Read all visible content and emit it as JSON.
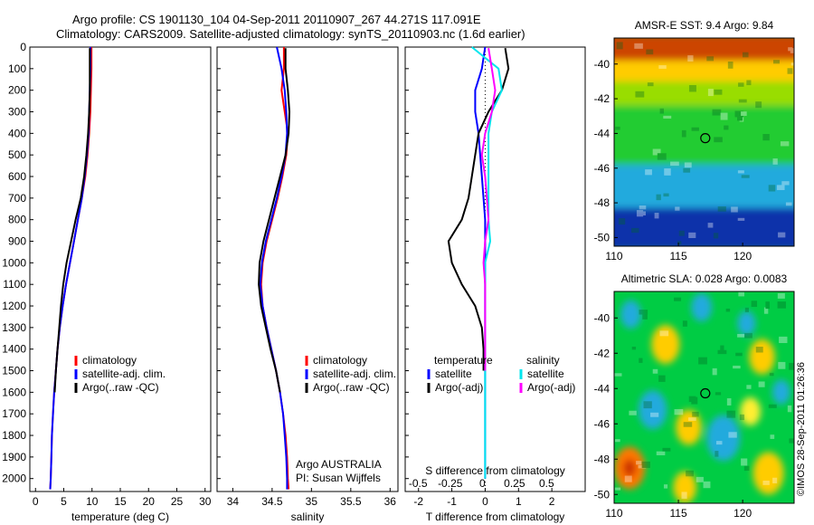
{
  "header": {
    "line1": "Argo profile: CS 1901130_104 04-Sep-2011 20110907_267 44.271S 117.091E",
    "line2": "Climatology: CARS2009. Satellite-adjusted climatology: synTS_20110903.nc (1.6d earlier)"
  },
  "credit": "©IMOS 28-Sep-2011 01:26:36",
  "colors": {
    "climatology": "#ff0000",
    "satellite": "#0000ff",
    "argo": "#000000",
    "satellite_salinity": "#00e5ee",
    "argo_salinity": "#ff00ff",
    "map_background": "#00cc44"
  },
  "chart_data": [
    {
      "type": "line",
      "panel": "temperature",
      "xlabel": "temperature (deg C)",
      "xlim": [
        -1,
        31
      ],
      "ylim": [
        2060,
        0
      ],
      "xticks": [
        0,
        5,
        10,
        15,
        20,
        25,
        30
      ],
      "yticks": [
        0,
        100,
        200,
        300,
        400,
        500,
        600,
        700,
        800,
        900,
        1000,
        1100,
        1200,
        1300,
        1400,
        1500,
        1600,
        1700,
        1800,
        1900,
        2000
      ],
      "legend": [
        "climatology",
        "satellite-adj. clim.",
        "Argo(..raw -QC)"
      ],
      "series": [
        {
          "name": "climatology",
          "color": "#ff0000",
          "x": [
            9.9,
            9.9,
            9.8,
            9.7,
            9.5,
            9.2,
            8.8,
            8.2,
            7.5,
            6.8,
            6.1,
            5.4,
            4.8,
            4.3,
            3.9,
            3.6,
            3.3,
            3.1,
            2.9,
            2.8,
            2.7,
            2.6
          ],
          "y": [
            0,
            100,
            200,
            300,
            400,
            500,
            600,
            700,
            800,
            900,
            1000,
            1100,
            1200,
            1300,
            1400,
            1500,
            1600,
            1700,
            1800,
            1900,
            2000,
            2050
          ]
        },
        {
          "name": "satellite-adj. clim.",
          "color": "#0000ff",
          "x": [
            9.7,
            9.7,
            9.6,
            9.5,
            9.4,
            9.1,
            8.7,
            8.2,
            7.5,
            6.8,
            6.1,
            5.4,
            4.8,
            4.3,
            3.9,
            3.6,
            3.3,
            3.1,
            2.9,
            2.8,
            2.7,
            2.6
          ],
          "y": [
            0,
            100,
            200,
            300,
            400,
            500,
            600,
            700,
            800,
            900,
            1000,
            1100,
            1200,
            1300,
            1400,
            1500,
            1600,
            1700,
            1800,
            1900,
            2000,
            2050
          ]
        },
        {
          "name": "Argo(..raw -QC)",
          "color": "#000000",
          "x": [
            9.6,
            9.6,
            9.6,
            9.5,
            9.3,
            9.0,
            8.6,
            8.0,
            7.1,
            6.3,
            5.5,
            4.9,
            4.5,
            4.2,
            3.9,
            3.6,
            3.4
          ],
          "y": [
            5,
            100,
            200,
            300,
            400,
            500,
            600,
            700,
            800,
            900,
            1000,
            1100,
            1200,
            1300,
            1400,
            1500,
            1600
          ]
        }
      ]
    },
    {
      "type": "line",
      "panel": "salinity",
      "xlabel": "salinity",
      "xlim": [
        33.8,
        36.1
      ],
      "ylim": [
        2060,
        0
      ],
      "xticks": [
        34,
        34.5,
        35,
        35.5,
        36
      ],
      "legend": [
        "climatology",
        "satellite-adj. clim.",
        "Argo(..raw -QC)"
      ],
      "annotation": [
        "Argo AUSTRALIA",
        "PI: Susan Wijffels"
      ],
      "series": [
        {
          "name": "climatology",
          "color": "#ff0000",
          "x": [
            34.65,
            34.65,
            34.62,
            34.66,
            34.7,
            34.68,
            34.63,
            34.57,
            34.5,
            34.43,
            34.38,
            34.36,
            34.38,
            34.43,
            34.49,
            34.55,
            34.6,
            34.64,
            34.67,
            34.69,
            34.7,
            34.71
          ],
          "y": [
            0,
            100,
            200,
            300,
            400,
            500,
            600,
            700,
            800,
            900,
            1000,
            1100,
            1200,
            1300,
            1400,
            1500,
            1600,
            1700,
            1800,
            1900,
            2000,
            2050
          ]
        },
        {
          "name": "satellite-adj. clim.",
          "color": "#0000ff",
          "x": [
            34.56,
            34.62,
            34.66,
            34.68,
            34.69,
            34.67,
            34.62,
            34.56,
            34.49,
            34.42,
            34.37,
            34.35,
            34.38,
            34.43,
            34.49,
            34.55,
            34.6,
            34.64,
            34.66,
            34.68,
            34.69,
            34.69
          ],
          "y": [
            0,
            100,
            200,
            300,
            400,
            500,
            600,
            700,
            800,
            900,
            1000,
            1100,
            1200,
            1300,
            1400,
            1500,
            1600,
            1700,
            1800,
            1900,
            2000,
            2050
          ]
        },
        {
          "name": "Argo(..raw -QC)",
          "color": "#000000",
          "x": [
            34.67,
            34.67,
            34.7,
            34.72,
            34.71,
            34.67,
            34.6,
            34.53,
            34.46,
            34.39,
            34.34,
            34.33,
            34.36,
            34.42,
            34.48,
            34.55,
            34.6
          ],
          "y": [
            5,
            100,
            200,
            300,
            400,
            500,
            600,
            700,
            800,
            900,
            1000,
            1100,
            1200,
            1300,
            1400,
            1500,
            1600
          ]
        }
      ]
    },
    {
      "type": "line",
      "panel": "difference",
      "xlabel": "T difference from climatology",
      "xlabel_top": "S difference from climatology",
      "xlim": [
        -2.4,
        3.0
      ],
      "ylim": [
        2060,
        0
      ],
      "xticks": [
        -2,
        -1,
        0,
        1,
        2
      ],
      "xticks_top": [
        -0.5,
        -0.25,
        0,
        0.25,
        0.5
      ],
      "xticks_top_labels": [
        "-0.5",
        "-0.25",
        "0",
        "0.25",
        "0.5"
      ],
      "legend_temperature": {
        "title": "temperature",
        "items": [
          "satellite",
          "Argo(-adj)"
        ]
      },
      "legend_salinity": {
        "title": "salinity",
        "items": [
          "satellite",
          "Argo(-adj)"
        ]
      },
      "series": [
        {
          "name": "satellite",
          "group": "temperature",
          "color": "#0000ff",
          "x": [
            0,
            -0.1,
            -0.3,
            -0.3,
            -0.2,
            -0.15,
            -0.1,
            -0.05,
            0,
            0,
            0,
            0,
            0,
            0,
            0,
            0,
            0,
            0,
            0,
            0,
            0
          ],
          "y": [
            0,
            100,
            200,
            300,
            400,
            500,
            600,
            700,
            800,
            900,
            1000,
            1100,
            1200,
            1300,
            1400,
            1500,
            1600,
            1700,
            1800,
            1900,
            2000
          ]
        },
        {
          "name": "Argo(-adj)",
          "group": "temperature",
          "color": "#000000",
          "x": [
            0.6,
            0.7,
            0.5,
            0.1,
            -0.2,
            -0.3,
            -0.4,
            -0.5,
            -0.7,
            -1.1,
            -1.0,
            -0.7,
            -0.3,
            -0.1,
            -0.05,
            -0.05
          ],
          "y": [
            5,
            100,
            200,
            300,
            400,
            500,
            600,
            700,
            800,
            900,
            1000,
            1100,
            1200,
            1300,
            1400,
            1500
          ]
        },
        {
          "name": "satellite",
          "group": "salinity",
          "color": "#00e5ee",
          "x": [
            -0.4,
            0.4,
            0.5,
            0.2,
            0.1,
            0.1,
            0.1,
            0.1,
            0.1,
            0.15,
            0,
            0,
            0,
            0,
            0,
            0,
            0,
            0,
            0,
            0,
            0
          ],
          "y": [
            0,
            100,
            200,
            300,
            400,
            500,
            600,
            700,
            800,
            900,
            1000,
            1100,
            1200,
            1300,
            1400,
            1500,
            1600,
            1700,
            1800,
            1900,
            2000
          ]
        },
        {
          "name": "Argo(-adj)",
          "group": "salinity",
          "color": "#ff00ff",
          "x": [
            0.1,
            0.2,
            0.3,
            0.2,
            0,
            -0.1,
            0,
            0.05,
            0.1,
            0,
            -0.05,
            0,
            0,
            0,
            0,
            0
          ],
          "y": [
            5,
            100,
            200,
            300,
            400,
            500,
            600,
            700,
            800,
            900,
            1000,
            1100,
            1200,
            1300,
            1400,
            1500
          ]
        }
      ]
    },
    {
      "type": "heatmap",
      "panel": "sst-map",
      "title": "AMSR-E SST: 9.4 Argo: 9.84",
      "xlim": [
        110,
        124
      ],
      "ylim": [
        -50.5,
        -38.5
      ],
      "xticks": [
        110,
        115,
        120
      ],
      "yticks": [
        -40,
        -42,
        -44,
        -46,
        -48,
        -50
      ],
      "marker": {
        "lon": 117.091,
        "lat": -44.271
      },
      "bands": [
        {
          "lat_top": -38.5,
          "lat_bottom": -40.0,
          "color": "#cc4400"
        },
        {
          "lat_top": -40.0,
          "lat_bottom": -41.2,
          "color": "#ffcc00"
        },
        {
          "lat_top": -41.2,
          "lat_bottom": -42.6,
          "color": "#99dd00"
        },
        {
          "lat_top": -42.6,
          "lat_bottom": -46.0,
          "color": "#22cc33"
        },
        {
          "lat_top": -46.0,
          "lat_bottom": -48.5,
          "color": "#22aadd"
        },
        {
          "lat_top": -48.5,
          "lat_bottom": -50.5,
          "color": "#1133aa"
        }
      ]
    },
    {
      "type": "heatmap",
      "panel": "sla-map",
      "title": "Altimetric SLA: 0.028 Argo: 0.0083",
      "xlim": [
        110,
        124
      ],
      "ylim": [
        -50.5,
        -38.5
      ],
      "xticks": [
        110,
        115,
        120
      ],
      "yticks": [
        -40,
        -42,
        -44,
        -46,
        -48,
        -50
      ],
      "marker": {
        "lon": 117.091,
        "lat": -44.271
      },
      "blobs": [
        {
          "lon": 111.3,
          "lat": -39.8,
          "r": 0.8,
          "color": "#22aadd"
        },
        {
          "lon": 114.0,
          "lat": -41.5,
          "r": 1.1,
          "color": "#ffcc00"
        },
        {
          "lon": 116.8,
          "lat": -39.4,
          "r": 0.8,
          "color": "#22aadd"
        },
        {
          "lon": 121.5,
          "lat": -42.2,
          "r": 1.0,
          "color": "#ffcc00"
        },
        {
          "lon": 120.3,
          "lat": -40.3,
          "r": 0.7,
          "color": "#22aadd"
        },
        {
          "lon": 113.0,
          "lat": -45.2,
          "r": 1.1,
          "color": "#22aadd"
        },
        {
          "lon": 118.5,
          "lat": -46.8,
          "r": 1.3,
          "color": "#22aadd"
        },
        {
          "lon": 115.8,
          "lat": -46.2,
          "r": 1.0,
          "color": "#ffcc00"
        },
        {
          "lon": 111.2,
          "lat": -48.5,
          "r": 1.2,
          "color": "#ff7700"
        },
        {
          "lon": 111.2,
          "lat": -48.5,
          "r": 0.5,
          "color": "#cc3300"
        },
        {
          "lon": 122.0,
          "lat": -48.8,
          "r": 1.2,
          "color": "#ffcc00"
        },
        {
          "lon": 120.6,
          "lat": -45.3,
          "r": 0.8,
          "color": "#ffee33"
        },
        {
          "lon": 115.5,
          "lat": -49.6,
          "r": 0.9,
          "color": "#ffcc00"
        },
        {
          "lon": 123.0,
          "lat": -44.2,
          "r": 0.7,
          "color": "#22aadd"
        }
      ]
    }
  ]
}
